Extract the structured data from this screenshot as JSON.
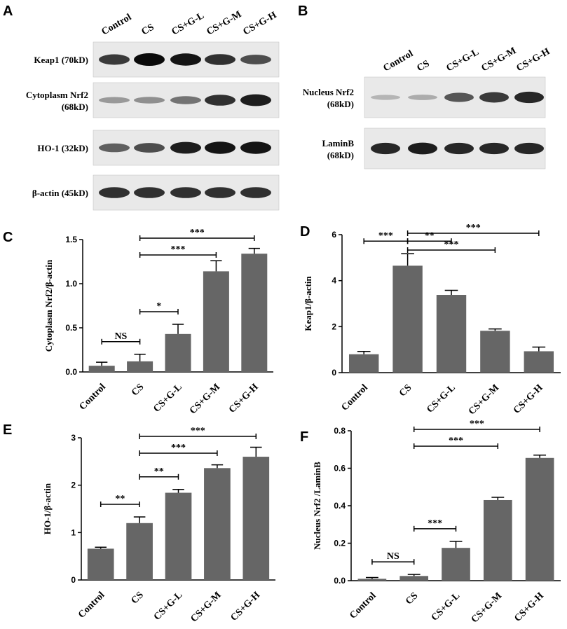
{
  "panel_letters": {
    "A": "A",
    "B": "B",
    "C": "C",
    "D": "D",
    "E": "E",
    "F": "F"
  },
  "blots": {
    "lanes": [
      "Control",
      "CS",
      "CS+G-L",
      "CS+G-M",
      "CS+G-H"
    ],
    "A": {
      "rows": [
        {
          "label": "Keap1 (70kD)",
          "intensity": [
            0.75,
            1.0,
            0.95,
            0.8,
            0.65
          ]
        },
        {
          "label": "Cytoplasm Nrf2",
          "label2": "(68kD)",
          "intensity": [
            0.25,
            0.3,
            0.45,
            0.8,
            0.9
          ]
        },
        {
          "label": "HO-1 (32kD)",
          "intensity": [
            0.55,
            0.65,
            0.9,
            0.95,
            0.95
          ]
        },
        {
          "label": "β-actin (45kD)",
          "intensity": [
            0.8,
            0.8,
            0.8,
            0.8,
            0.8
          ]
        }
      ]
    },
    "B": {
      "rows": [
        {
          "label": "Nucleus Nrf2",
          "label2": "(68kD)",
          "intensity": [
            0.1,
            0.15,
            0.6,
            0.75,
            0.85
          ]
        },
        {
          "label": "LaminB",
          "label2": "(68kD)",
          "intensity": [
            0.85,
            0.9,
            0.85,
            0.85,
            0.85
          ]
        }
      ]
    }
  },
  "chart_data": [
    {
      "panel": "C",
      "type": "bar",
      "categories": [
        "Control",
        "CS",
        "CS+G-L",
        "CS+G-M",
        "CS+G-H"
      ],
      "values": [
        0.07,
        0.12,
        0.43,
        1.14,
        1.34
      ],
      "errors": [
        0.04,
        0.08,
        0.11,
        0.12,
        0.06
      ],
      "ylabel": "Cytoplasm Nrf2/β-actin",
      "ylim": [
        0,
        1.5
      ],
      "yticks": [
        "0.0",
        "0.5",
        "1.0",
        "1.5"
      ],
      "sig": [
        {
          "from": 0,
          "to": 1,
          "text": "NS",
          "level": 0
        },
        {
          "from": 1,
          "to": 2,
          "text": "*",
          "level": 0
        },
        {
          "from": 1,
          "to": 3,
          "text": "***",
          "level": 1
        },
        {
          "from": 1,
          "to": 4,
          "text": "***",
          "level": 2
        }
      ]
    },
    {
      "panel": "D",
      "type": "bar",
      "categories": [
        "Control",
        "CS",
        "CS+G-L",
        "CS+G-M",
        "CS+G-H"
      ],
      "values": [
        0.8,
        4.65,
        3.38,
        1.82,
        0.93
      ],
      "errors": [
        0.12,
        0.52,
        0.2,
        0.08,
        0.18
      ],
      "ylabel": "Keap1/β-actin",
      "ylim": [
        0,
        6
      ],
      "yticks": [
        "0",
        "2",
        "4",
        "6"
      ],
      "sig": [
        {
          "from": 0,
          "to": 1,
          "text": "***",
          "level": 0
        },
        {
          "from": 1,
          "to": 2,
          "text": "**",
          "level": 0
        },
        {
          "from": 1,
          "to": 3,
          "text": "***",
          "level": 1
        },
        {
          "from": 1,
          "to": 4,
          "text": "***",
          "level": 2
        }
      ]
    },
    {
      "panel": "E",
      "type": "bar",
      "categories": [
        "Control",
        "CS",
        "CS+G-L",
        "CS+G-M",
        "CS+G-H"
      ],
      "values": [
        0.66,
        1.2,
        1.84,
        2.36,
        2.6
      ],
      "errors": [
        0.03,
        0.13,
        0.07,
        0.07,
        0.2
      ],
      "ylabel": "HO-1/β-actin",
      "ylim": [
        0,
        3
      ],
      "yticks": [
        "0",
        "1",
        "2",
        "3"
      ],
      "sig": [
        {
          "from": 0,
          "to": 1,
          "text": "**",
          "level": 0
        },
        {
          "from": 1,
          "to": 2,
          "text": "**",
          "level": 0
        },
        {
          "from": 1,
          "to": 3,
          "text": "***",
          "level": 1
        },
        {
          "from": 1,
          "to": 4,
          "text": "***",
          "level": 2
        }
      ]
    },
    {
      "panel": "F",
      "type": "bar",
      "categories": [
        "Control",
        "CS",
        "CS+G-L",
        "CS+G-M",
        "CS+G-H"
      ],
      "values": [
        0.01,
        0.025,
        0.175,
        0.43,
        0.655
      ],
      "errors": [
        0.007,
        0.008,
        0.035,
        0.015,
        0.015
      ],
      "ylabel": "Nucleus Nrf2 /LaminB",
      "ylim": [
        0,
        0.8
      ],
      "yticks": [
        "0.0",
        "0.2",
        "0.4",
        "0.6",
        "0.8"
      ],
      "sig": [
        {
          "from": 1,
          "to": 0,
          "text": "NS",
          "level": 0
        },
        {
          "from": 1,
          "to": 2,
          "text": "***",
          "level": 0
        },
        {
          "from": 1,
          "to": 3,
          "text": "***",
          "level": 1
        },
        {
          "from": 1,
          "to": 4,
          "text": "***",
          "level": 2
        }
      ]
    }
  ],
  "colors": {
    "bar": "#666666",
    "axis": "#000000"
  }
}
